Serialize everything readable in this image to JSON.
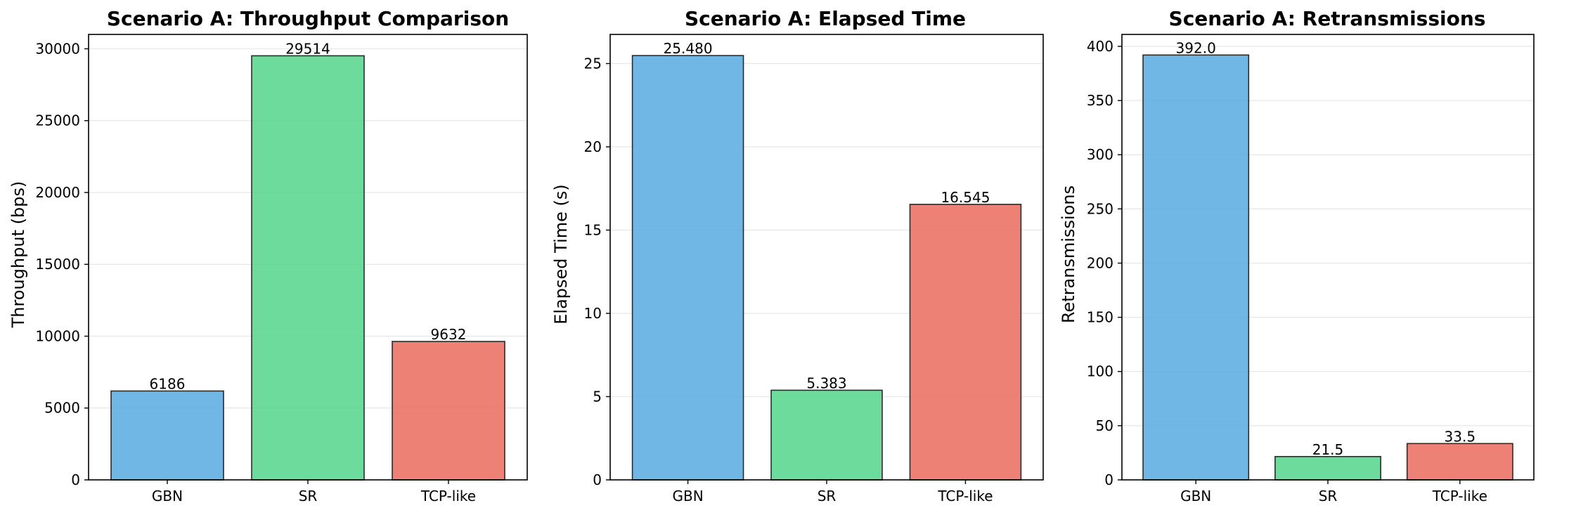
{
  "chart_data": [
    {
      "type": "bar",
      "title": "Scenario A: Throughput Comparison",
      "xlabel": "",
      "ylabel": "Throughput (bps)",
      "categories": [
        "GBN",
        "SR",
        "TCP-like"
      ],
      "values": [
        6186,
        29514,
        9632
      ],
      "data_labels": [
        "6186",
        "29514",
        "9632"
      ],
      "colors": [
        "#5DADE2",
        "#58D68D",
        "#EC7063"
      ],
      "ylim": [
        0,
        31000
      ],
      "yticks": [
        0,
        5000,
        10000,
        15000,
        20000,
        25000,
        30000
      ],
      "ytick_labels": [
        "0",
        "5000",
        "10000",
        "15000",
        "20000",
        "25000",
        "30000"
      ],
      "grid": "y"
    },
    {
      "type": "bar",
      "title": "Scenario A: Elapsed Time",
      "xlabel": "",
      "ylabel": "Elapsed Time (s)",
      "categories": [
        "GBN",
        "SR",
        "TCP-like"
      ],
      "values": [
        25.48,
        5.383,
        16.545
      ],
      "data_labels": [
        "25.480",
        "5.383",
        "16.545"
      ],
      "colors": [
        "#5DADE2",
        "#58D68D",
        "#EC7063"
      ],
      "ylim": [
        0,
        26.75
      ],
      "yticks": [
        0,
        5,
        10,
        15,
        20,
        25
      ],
      "ytick_labels": [
        "0",
        "5",
        "10",
        "15",
        "20",
        "25"
      ],
      "grid": "y"
    },
    {
      "type": "bar",
      "title": "Scenario A: Retransmissions",
      "xlabel": "",
      "ylabel": "Retransmissions",
      "categories": [
        "GBN",
        "SR",
        "TCP-like"
      ],
      "values": [
        392.0,
        21.5,
        33.5
      ],
      "data_labels": [
        "392.0",
        "21.5",
        "33.5"
      ],
      "colors": [
        "#5DADE2",
        "#58D68D",
        "#EC7063"
      ],
      "ylim": [
        0,
        411
      ],
      "yticks": [
        0,
        50,
        100,
        150,
        200,
        250,
        300,
        350,
        400
      ],
      "ytick_labels": [
        "0",
        "50",
        "100",
        "150",
        "200",
        "250",
        "300",
        "350",
        "400"
      ],
      "grid": "y"
    }
  ]
}
